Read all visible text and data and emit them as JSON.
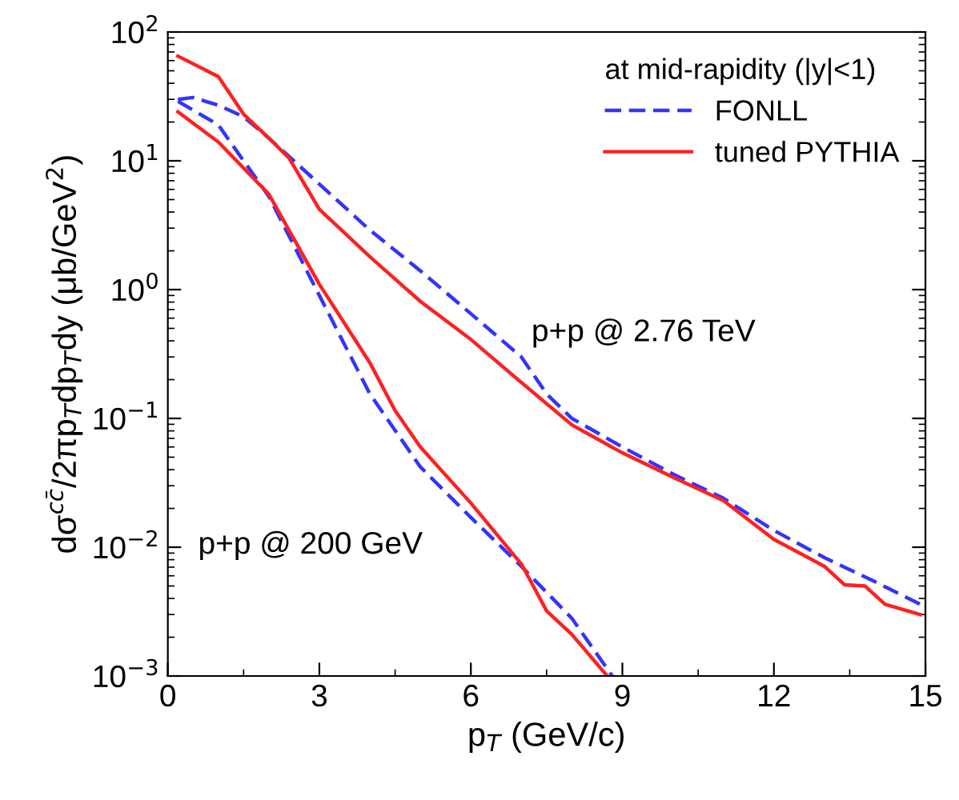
{
  "chart_data": {
    "type": "line",
    "xlabel": "p$_{T}$ (GeV/c)",
    "ylabel": "dσ$^{cc̄}$/2πp$_{T}$dp$_{T}$dy (μb/GeV$^{2}$)",
    "legend_title": "at mid-rapidity (|y|<1)",
    "legend": "top right",
    "log": "y",
    "grid": false,
    "xlim": [
      0,
      15
    ],
    "xticks": [
      0,
      3,
      6,
      9,
      12,
      15
    ],
    "ylim": [
      0.001,
      100
    ],
    "yticks": [
      {
        "value": 0.001,
        "label": "10$^{−3}$"
      },
      {
        "value": 0.01,
        "label": "10$^{−2}$"
      },
      {
        "value": 0.1,
        "label": "10$^{−1}$"
      },
      {
        "value": 1,
        "label": "10$^{0}$"
      },
      {
        "value": 10,
        "label": "10$^{1}$"
      },
      {
        "value": 100,
        "label": "10$^{2}$"
      }
    ],
    "series": [
      {
        "name": "FONLL",
        "color": "#3333ff",
        "line_style": "dashed",
        "x": [
          0.2,
          0.5,
          1,
          1.5,
          2,
          3,
          4,
          5,
          6,
          7,
          7.5,
          8,
          9,
          10,
          11,
          12,
          13,
          14,
          14.9
        ],
        "values": [
          30,
          31,
          27,
          22,
          15,
          6.6,
          2.9,
          1.4,
          0.65,
          0.3,
          0.155,
          0.1,
          0.06,
          0.037,
          0.024,
          0.0135,
          0.0083,
          0.0054,
          0.0036
        ]
      },
      {
        "name": "tuned PYTHIA",
        "color": "#ff2020",
        "line_style": "solid",
        "x": [
          0.2,
          1,
          1.5,
          2,
          2.4,
          3,
          4,
          5,
          6,
          7,
          8,
          9,
          10,
          11,
          12,
          13,
          13.4,
          13.8,
          14.2,
          14.9
        ],
        "values": [
          65,
          45,
          23,
          15,
          10.5,
          4.2,
          1.8,
          0.81,
          0.41,
          0.19,
          0.089,
          0.054,
          0.035,
          0.023,
          0.0115,
          0.0071,
          0.0051,
          0.005,
          0.0036,
          0.003
        ]
      },
      {
        "color": "#3333ff",
        "line_style": "dashed",
        "x": [
          0.2,
          1,
          1.5,
          2,
          3,
          4,
          5,
          6,
          7,
          8,
          8.8
        ],
        "values": [
          29,
          19,
          10,
          5.3,
          0.9,
          0.155,
          0.042,
          0.017,
          0.0071,
          0.0028,
          0.001
        ]
      },
      {
        "color": "#ff2020",
        "line_style": "solid",
        "x": [
          0.2,
          1,
          2,
          3,
          4,
          4.5,
          5,
          6,
          7,
          7.5,
          8,
          8.7
        ],
        "values": [
          24,
          14,
          5.5,
          1.1,
          0.27,
          0.115,
          0.06,
          0.022,
          0.0074,
          0.0032,
          0.0021,
          0.001
        ]
      }
    ],
    "annotations": [
      "p+p @ 2.76 TeV",
      "p+p @ 200 GeV"
    ]
  }
}
